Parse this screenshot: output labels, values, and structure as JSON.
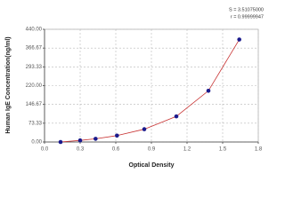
{
  "chart_data": {
    "type": "scatter",
    "xlabel": "Optical Density",
    "ylabel": "Human IgE Concentration(ng/ml)",
    "annotations": [
      "S = 3.51075000",
      "r = 0.99999947"
    ],
    "x": [
      0.135,
      0.3,
      0.43,
      0.61,
      0.84,
      1.11,
      1.38,
      1.64
    ],
    "series": [
      {
        "color": "#1a1a8c",
        "line_color": "#c83232",
        "values": [
          0,
          6.25,
          12.5,
          25,
          50,
          100,
          200,
          400
        ]
      }
    ],
    "xlim": [
      0,
      1.8
    ],
    "xticks": [
      {
        "value": 0,
        "label": "0.0"
      },
      0.3,
      0.6,
      0.9,
      1.2,
      1.5,
      1.8
    ],
    "ylim": [
      0,
      440
    ],
    "yticks": [
      {
        "value": 0,
        "label": "0.00"
      },
      73.33,
      146.67,
      {
        "value": 220,
        "label": "220.00"
      },
      293.33,
      366.67,
      {
        "value": 440,
        "label": "440.00"
      }
    ],
    "grid": true,
    "line": true
  }
}
